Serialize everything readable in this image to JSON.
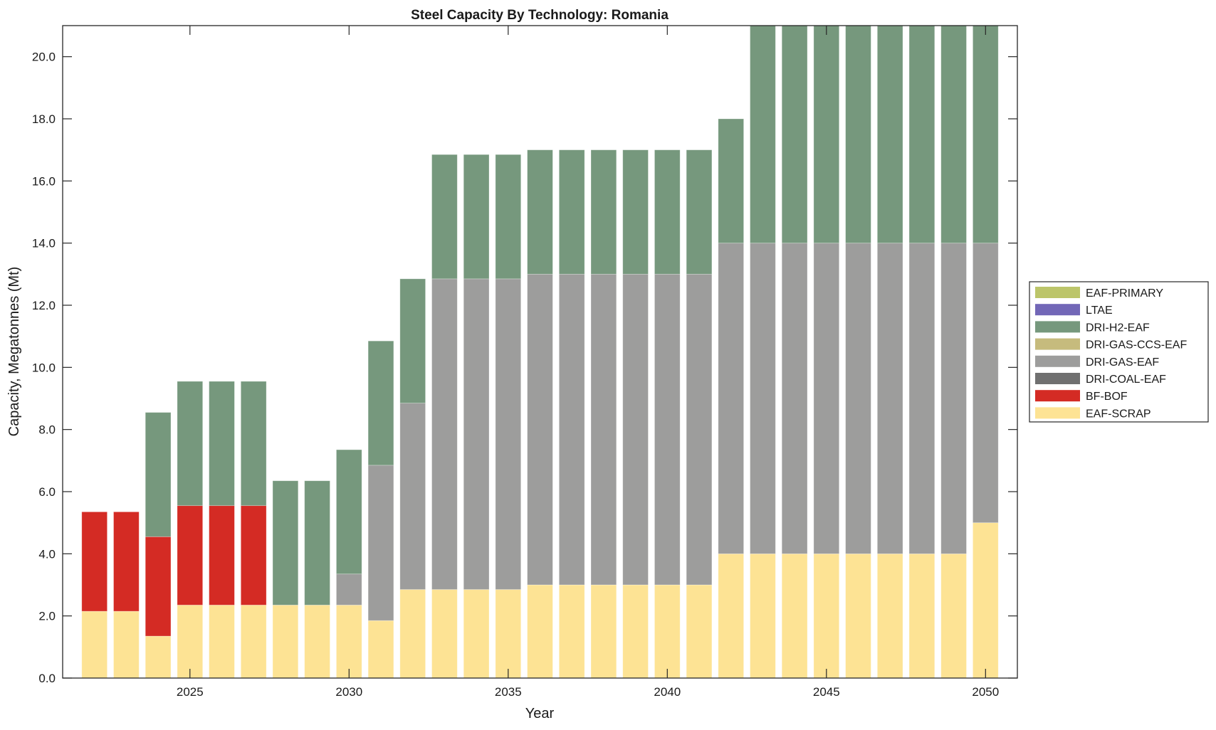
{
  "chart_data": {
    "type": "bar",
    "stacked": true,
    "title": "Steel Capacity By Technology: Romania",
    "xlabel": "Year",
    "ylabel": "Capacity, Megatonnes (Mt)",
    "xlim": [
      2021,
      2051
    ],
    "ylim": [
      0,
      21
    ],
    "xticks": [
      2025,
      2030,
      2035,
      2040,
      2045,
      2050
    ],
    "yticks": [
      0,
      2,
      4,
      6,
      8,
      10,
      12,
      14,
      16,
      18,
      20
    ],
    "ytick_labels": [
      "0.0",
      "2.0",
      "4.0",
      "6.0",
      "8.0",
      "10.0",
      "12.0",
      "14.0",
      "16.0",
      "18.0",
      "20.0"
    ],
    "grid": false,
    "legend_position": "right",
    "categories": [
      2022,
      2023,
      2024,
      2025,
      2026,
      2027,
      2028,
      2029,
      2030,
      2031,
      2032,
      2033,
      2034,
      2035,
      2036,
      2037,
      2038,
      2039,
      2040,
      2041,
      2042,
      2043,
      2044,
      2045,
      2046,
      2047,
      2048,
      2049,
      2050
    ],
    "series": [
      {
        "name": "EAF-SCRAP",
        "color": "#fde394",
        "values": [
          2.15,
          2.15,
          1.35,
          2.35,
          2.35,
          2.35,
          2.35,
          2.35,
          2.35,
          1.85,
          2.85,
          2.85,
          2.85,
          2.85,
          3,
          3,
          3,
          3,
          3,
          3,
          4,
          4,
          4,
          4,
          4,
          4,
          4,
          4,
          5
        ]
      },
      {
        "name": "BF-BOF",
        "color": "#d42b24",
        "values": [
          3.2,
          3.2,
          3.2,
          3.2,
          3.2,
          3.2,
          0,
          0,
          0,
          0,
          0,
          0,
          0,
          0,
          0,
          0,
          0,
          0,
          0,
          0,
          0,
          0,
          0,
          0,
          0,
          0,
          0,
          0,
          0
        ]
      },
      {
        "name": "DRI-COAL-EAF",
        "color": "#707070",
        "values": [
          0,
          0,
          0,
          0,
          0,
          0,
          0,
          0,
          0,
          0,
          0,
          0,
          0,
          0,
          0,
          0,
          0,
          0,
          0,
          0,
          0,
          0,
          0,
          0,
          0,
          0,
          0,
          0,
          0
        ]
      },
      {
        "name": "DRI-GAS-EAF",
        "color": "#9d9d9c",
        "values": [
          0,
          0,
          0,
          0,
          0,
          0,
          0,
          0,
          1,
          5,
          6,
          10,
          10,
          10,
          10,
          10,
          10,
          10,
          10,
          10,
          10,
          10,
          10,
          10,
          10,
          10,
          10,
          10,
          9
        ]
      },
      {
        "name": "DRI-GAS-CCS-EAF",
        "color": "#c6bb7d",
        "values": [
          0,
          0,
          0,
          0,
          0,
          0,
          0,
          0,
          0,
          0,
          0,
          0,
          0,
          0,
          0,
          0,
          0,
          0,
          0,
          0,
          0,
          0,
          0,
          0,
          0,
          0,
          0,
          0,
          0
        ]
      },
      {
        "name": "DRI-H2-EAF",
        "color": "#76987d",
        "values": [
          0,
          0,
          4,
          4,
          4,
          4,
          4,
          4,
          4,
          4,
          4,
          4,
          4,
          4,
          4,
          4,
          4,
          4,
          4,
          4,
          4,
          8,
          8,
          8,
          8,
          8,
          8,
          8,
          8
        ]
      },
      {
        "name": "LTAE",
        "color": "#7267b7",
        "values": [
          0,
          0,
          0,
          0,
          0,
          0,
          0,
          0,
          0,
          0,
          0,
          0,
          0,
          0,
          0,
          0,
          0,
          0,
          0,
          0,
          0,
          0,
          0,
          0,
          0,
          0,
          0,
          0,
          0
        ]
      },
      {
        "name": "EAF-PRIMARY",
        "color": "#bcc56a",
        "values": [
          0,
          0,
          0,
          0,
          0,
          0,
          0,
          0,
          0,
          0,
          0,
          0,
          0,
          0,
          0,
          0,
          0,
          0,
          0,
          0,
          0,
          0,
          0,
          0,
          0,
          0,
          0,
          0,
          0
        ]
      }
    ],
    "legend_order": [
      "EAF-PRIMARY",
      "LTAE",
      "DRI-H2-EAF",
      "DRI-GAS-CCS-EAF",
      "DRI-GAS-EAF",
      "DRI-COAL-EAF",
      "BF-BOF",
      "EAF-SCRAP"
    ]
  }
}
